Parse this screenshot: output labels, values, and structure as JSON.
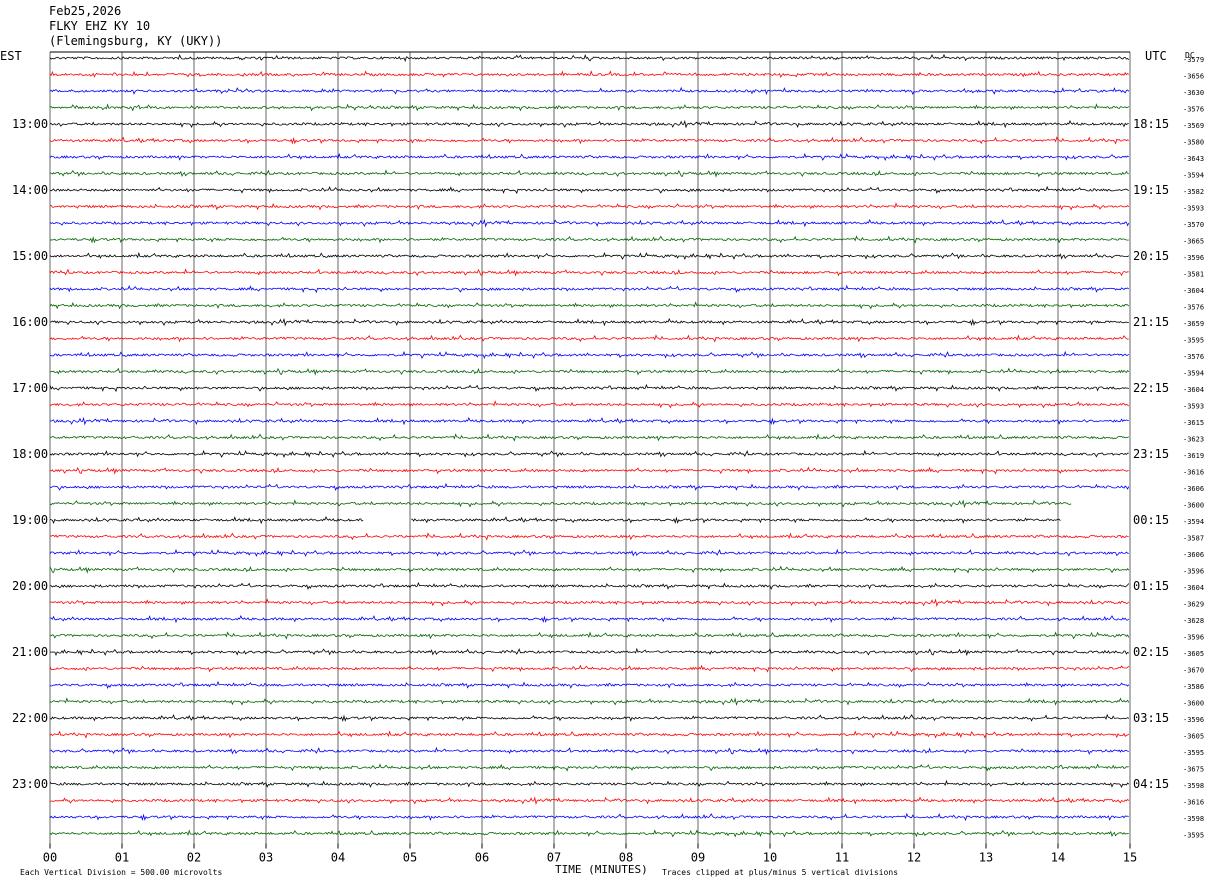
{
  "header": {
    "date": "Feb25,2026",
    "station": "FLKY EHZ KY 10",
    "location": "(Flemingsburg, KY (UKY))"
  },
  "left_timezone": "EST",
  "right_timezone": "UTC",
  "dc_label": "DC",
  "footer": {
    "vertical_division": "Each Vertical Division =  500.00 microvolts",
    "xaxis_title": "TIME (MINUTES)",
    "clip_note": "Traces clipped at plus/minus 5 vertical divisions"
  },
  "colors": {
    "trace_cycle": [
      "#000000",
      "#ff0000",
      "#0000ff",
      "#006400"
    ],
    "grid": "#000000"
  },
  "chart_data": {
    "type": "line",
    "description_kind": "helicorder seismogram",
    "x_ticks": [
      "00",
      "01",
      "02",
      "03",
      "04",
      "05",
      "06",
      "07",
      "08",
      "09",
      "10",
      "11",
      "12",
      "13",
      "14",
      "15"
    ],
    "xlim": [
      0,
      15
    ],
    "left_hour_labels": [
      "13:00",
      "14:00",
      "15:00",
      "16:00",
      "17:00",
      "18:00",
      "19:00",
      "20:00",
      "21:00",
      "22:00",
      "23:00"
    ],
    "right_hour_labels": [
      "18:15",
      "19:15",
      "20:15",
      "21:15",
      "22:15",
      "23:15",
      "00:15",
      "01:15",
      "02:15",
      "03:15",
      "04:15"
    ],
    "dc_offsets": [
      "-3579",
      "-3656",
      "-3630",
      "-3576",
      "-3569",
      "-3580",
      "-3643",
      "-3594",
      "-3582",
      "-3593",
      "-3570",
      "-3665",
      "-3596",
      "-3581",
      "-3604",
      "-3576",
      "-3659",
      "-3595",
      "-3576",
      "-3594",
      "-3604",
      "-3593",
      "-3615",
      "-3623",
      "-3619",
      "-3616",
      "-3606",
      "-3600",
      "-3594",
      "-3587",
      "-3606",
      "-3596",
      "-3604",
      "-3629",
      "-3628",
      "-3596",
      "-3605",
      "-3670",
      "-3586",
      "-3600",
      "-3596",
      "-3605",
      "-3595",
      "-3675",
      "-3598",
      "-3616",
      "-3598",
      "-3595"
    ],
    "trace_count": 48,
    "gap": {
      "trace_index": 28,
      "start_min": 4.35,
      "end_min": 5.0
    },
    "end_partial": {
      "trace_index": 27,
      "end_min": 14.2
    },
    "end_partial_2": {
      "trace_index": 28,
      "end_min": 14.05
    }
  }
}
